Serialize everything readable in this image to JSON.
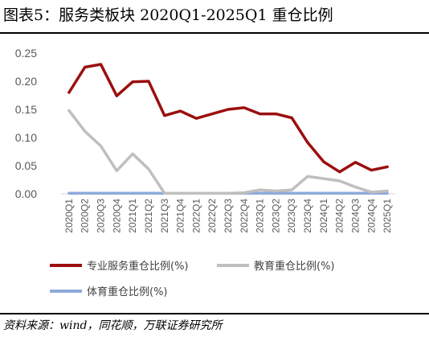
{
  "figure": {
    "title": "图表5：服务类板块 2020Q1-2025Q1 重仓比例",
    "source": "资料来源：wind，同花顺，万联证券研究所"
  },
  "chart_data": {
    "type": "line",
    "categories": [
      "2020Q1",
      "2020Q2",
      "2020Q3",
      "2020Q4",
      "2021Q1",
      "2021Q2",
      "2021Q3",
      "2021Q4",
      "2022Q1",
      "2022Q2",
      "2022Q3",
      "2022Q4",
      "2023Q1",
      "2023Q2",
      "2023Q3",
      "2023Q4",
      "2024Q1",
      "2024Q2",
      "2024Q3",
      "2024Q4",
      "2025Q1"
    ],
    "yticks": [
      "0.00",
      "0.05",
      "0.10",
      "0.15",
      "0.20",
      "0.25"
    ],
    "ylim": [
      0,
      0.25
    ],
    "grid": false,
    "legend_position": "bottom",
    "series": [
      {
        "name": "专业服务重仓比例(%)",
        "color": "#9b0f0f",
        "values": [
          0.18,
          0.225,
          0.23,
          0.174,
          0.199,
          0.2,
          0.139,
          0.147,
          0.134,
          0.142,
          0.15,
          0.153,
          0.142,
          0.142,
          0.135,
          0.091,
          0.057,
          0.039,
          0.056,
          0.042,
          0.048
        ]
      },
      {
        "name": "教育重仓比例(%)",
        "color": "#bfbfbf",
        "values": [
          0.148,
          0.111,
          0.085,
          0.041,
          0.071,
          0.044,
          0.001,
          0.001,
          0.001,
          0.001,
          0.001,
          0.002,
          0.007,
          0.005,
          0.007,
          0.031,
          0.027,
          0.023,
          0.012,
          0.003,
          0.005
        ]
      },
      {
        "name": "体育重仓比例(%)",
        "color": "#8eaadb",
        "values": [
          0.001,
          0.001,
          0.001,
          0.001,
          0.001,
          0.001,
          0.001,
          0.001,
          0.001,
          0.001,
          0.001,
          0.001,
          0.001,
          0.001,
          0.001,
          0.001,
          0.001,
          0.001,
          0.001,
          0.001,
          0.001
        ]
      }
    ]
  }
}
